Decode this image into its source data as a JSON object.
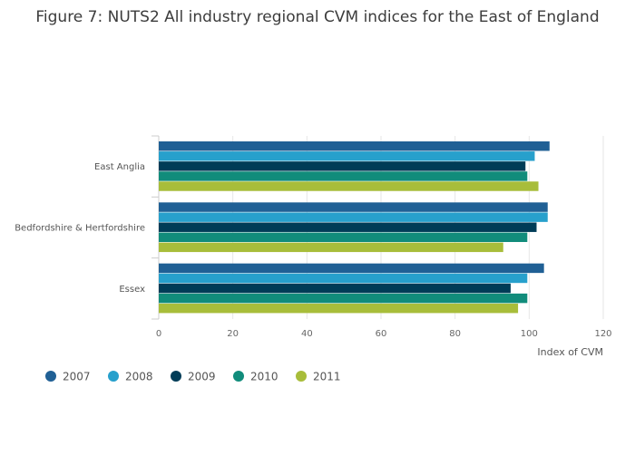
{
  "chart_data": {
    "type": "bar",
    "orientation": "horizontal",
    "title": "Figure 7: NUTS2 All industry regional CVM indices for the East of England",
    "xlabel": "Index of CVM",
    "ylabel": "",
    "xlim": [
      0,
      120
    ],
    "xticks": [
      0,
      20,
      40,
      60,
      80,
      100,
      120
    ],
    "grid": true,
    "legend_position": "bottom-left",
    "categories": [
      "East Anglia",
      "Bedfordshire & Hertfordshire",
      "Essex"
    ],
    "series": [
      {
        "name": "2007",
        "color": "#206095",
        "values": [
          105.5,
          105,
          104
        ]
      },
      {
        "name": "2008",
        "color": "#27a0cc",
        "values": [
          101.5,
          105,
          99.5
        ]
      },
      {
        "name": "2009",
        "color": "#003c57",
        "values": [
          99,
          102,
          95
        ]
      },
      {
        "name": "2010",
        "color": "#118c7b",
        "values": [
          99.5,
          99.5,
          99.5
        ]
      },
      {
        "name": "2011",
        "color": "#a8bd3a",
        "values": [
          102.5,
          93,
          97
        ]
      }
    ]
  }
}
